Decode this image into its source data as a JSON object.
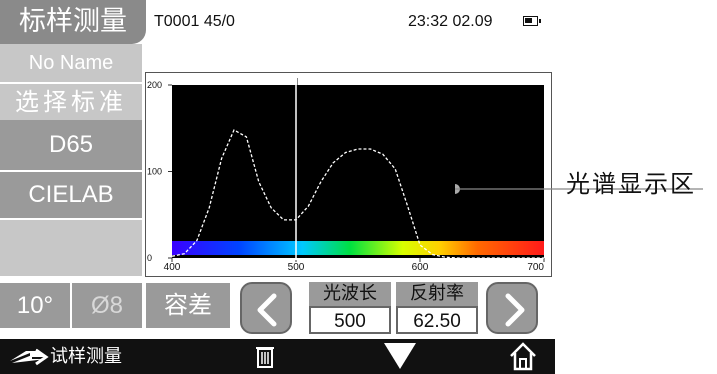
{
  "header": {
    "title": "标样测量",
    "status_left": "T0001 45/0",
    "status_right": "23:32 02.09"
  },
  "sidebar": {
    "items": [
      {
        "label": "No Name"
      },
      {
        "label": "选择标准"
      },
      {
        "label": "D65"
      },
      {
        "label": "CIELAB"
      }
    ],
    "observer": "10°",
    "aperture": "Ø8",
    "tolerance": "容差"
  },
  "readout": {
    "wavelength_label": "光波长",
    "wavelength_value": "500",
    "reflectance_label": "反射率",
    "reflectance_value": "62.50"
  },
  "bottom_bar": {
    "label": "试样测量",
    "icons": [
      "arrow-right-icon",
      "trash-icon",
      "triangle-down-icon",
      "home-icon"
    ]
  },
  "annotation": {
    "text": "光谱显示区"
  },
  "chart_data": {
    "type": "line",
    "x": [
      400,
      410,
      420,
      430,
      440,
      450,
      460,
      470,
      480,
      490,
      500,
      510,
      520,
      530,
      540,
      550,
      560,
      570,
      580,
      590,
      600,
      610,
      620,
      630,
      640,
      650,
      660,
      670,
      680,
      690,
      700
    ],
    "series": [
      {
        "values": [
          2,
          5,
          20,
          58,
          115,
          148,
          140,
          88,
          58,
          44,
          44,
          60,
          88,
          110,
          122,
          126,
          126,
          120,
          103,
          60,
          15,
          4,
          1,
          0,
          0,
          0,
          0,
          0,
          0,
          0,
          0
        ]
      }
    ],
    "xlim": [
      400,
      700
    ],
    "ylim": [
      0,
      200
    ],
    "x_ticks": [
      "400",
      "500",
      "600",
      "700"
    ],
    "y_ticks": [
      "0",
      "100",
      "200"
    ],
    "cursor_x": 500,
    "background": "#000000",
    "line_color": "#ffffff",
    "line_style": "dashed",
    "spectrum_band": true
  },
  "colors": {
    "panel_gray": "#9a9a9a",
    "panel_light_gray": "#c7c7c7",
    "bar_black": "#111111"
  }
}
